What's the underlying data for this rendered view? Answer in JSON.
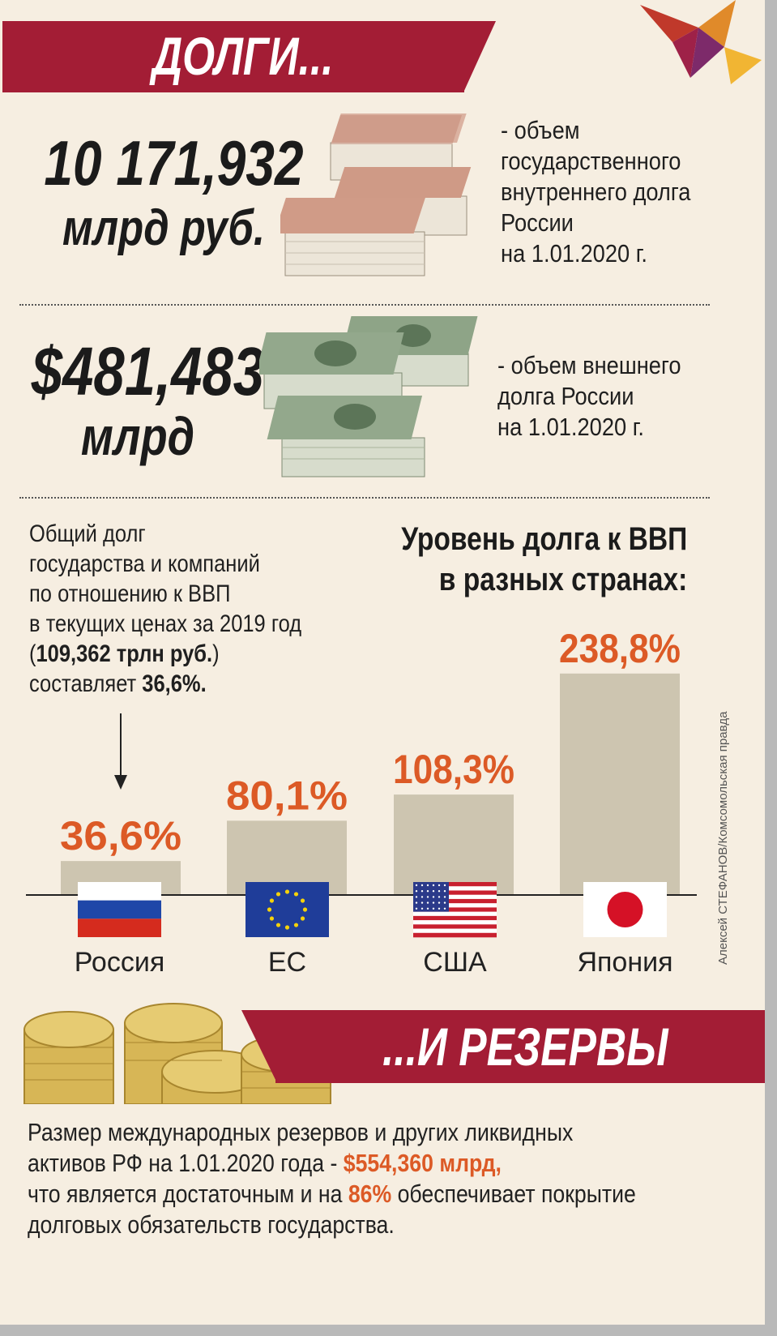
{
  "header": {
    "title": "ДОЛГИ..."
  },
  "domestic_debt": {
    "amount": "10 171,932",
    "unit": "млрд руб.",
    "description": [
      "- объем",
      "государственного",
      "внутреннего долга",
      "России",
      "на 1.01.2020 г."
    ]
  },
  "external_debt": {
    "amount": "$481,483",
    "unit": "млрд",
    "description": [
      "- объем внешнего",
      "долга России",
      "на 1.01.2020 г."
    ]
  },
  "total_debt_note": {
    "lines": [
      "Общий долг",
      "государства и компаний",
      "по отношению к ВВП",
      "в текущих ценах за 2019 год"
    ],
    "gdp_open": "(",
    "gdp_value": "109,362 трлн руб.",
    "gdp_close": ")",
    "share_text": "составляет ",
    "share_value": "36,6%."
  },
  "chart_data": {
    "type": "bar",
    "title": "Уровень долга к ВВП в разных странах:",
    "title_lines": [
      "Уровень долга к ВВП",
      "в разных странах:"
    ],
    "categories": [
      "Россия",
      "ЕС",
      "США",
      "Япония"
    ],
    "values": [
      36.6,
      80.1,
      108.3,
      238.8
    ],
    "value_labels": [
      "36,6%",
      "80,1%",
      "108,3%",
      "238,8%"
    ],
    "unit": "% of GDP",
    "ylim": [
      0,
      250
    ],
    "bar_color": "#cdc5b0",
    "label_color": "#dc5a26"
  },
  "credit": "Алексей СТЕФАНОВ/Комсомольская правда",
  "reserves": {
    "title": "...И РЕЗЕРВЫ",
    "line1": "Размер международных резервов и других ликвидных",
    "line2_prefix": "активов РФ на 1.01.2020 года - ",
    "line2_amount": "$554,360 млрд,",
    "line3_prefix": "что является достаточным и на ",
    "line3_percent": "86%",
    "line3_suffix": " обеспечивает покрытие",
    "line4": "долговых обязательств государства."
  },
  "colors": {
    "banner": "#a31d35",
    "accent": "#dc5a26",
    "background": "#f6eee1"
  }
}
